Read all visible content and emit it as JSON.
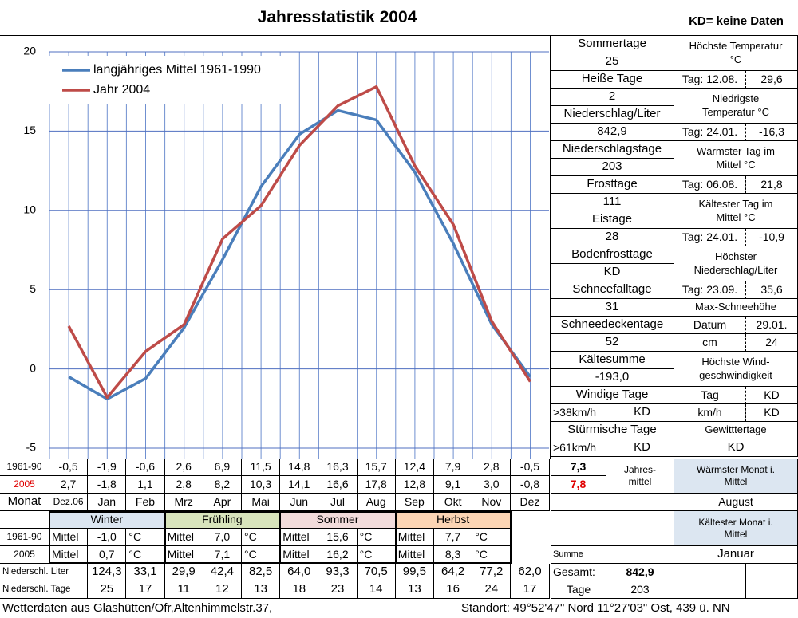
{
  "title": "Jahresstatistik 2004",
  "note": "KD= keine Daten",
  "chart_data": {
    "type": "line",
    "categories": [
      "Dez.06",
      "Jan",
      "Feb",
      "Mrz",
      "Apr",
      "Mai",
      "Jun",
      "Jul",
      "Aug",
      "Sep",
      "Okt",
      "Nov",
      "Dez"
    ],
    "series": [
      {
        "name": "langjähriges Mittel 1961-1990",
        "color": "#4a7ebb",
        "values": [
          -0.5,
          -1.9,
          -0.6,
          2.6,
          6.9,
          11.5,
          14.8,
          16.3,
          15.7,
          12.4,
          7.9,
          2.8,
          -0.5
        ],
        "value_labels": [
          "-0,5",
          "-1,9",
          "-0,6",
          "2,6",
          "6,9",
          "11,5",
          "14,8",
          "16,3",
          "15,7",
          "12,4",
          "7,9",
          "2,8",
          "-0,5"
        ]
      },
      {
        "name": "Jahr 2004",
        "color": "#be4b48",
        "values": [
          2.7,
          -1.8,
          1.1,
          2.8,
          8.2,
          10.3,
          14.1,
          16.6,
          17.8,
          12.8,
          9.1,
          3.0,
          -0.8
        ],
        "value_labels": [
          "2,7",
          "-1,8",
          "1,1",
          "2,8",
          "8,2",
          "10,3",
          "14,1",
          "16,6",
          "17,8",
          "12,8",
          "9,1",
          "3,0",
          "-0,8"
        ]
      }
    ],
    "ylim": [
      -5,
      20
    ],
    "yticks": [
      -5,
      0,
      5,
      10,
      15,
      20
    ],
    "grid": true,
    "legend": "upper left"
  },
  "monthly_table": {
    "row_labels": [
      "1961-90",
      "2005",
      "Monat"
    ],
    "annual_values": [
      "7,3",
      "7,8"
    ],
    "annual_label": "Jahres-\nmittel"
  },
  "warmest_month": {
    "label": "Wärmster Monat i.\nMittel",
    "value": "August"
  },
  "coldest_month": {
    "label": "Kältester Monat i.\nMittel",
    "value": "Januar"
  },
  "seasons": {
    "row_labels": [
      "1961-90",
      "2005"
    ],
    "mittel": "Mittel",
    "unit": "°C",
    "items": [
      {
        "name": "Winter",
        "color": "#dce6f1",
        "values": [
          "-1,0",
          "0,7"
        ]
      },
      {
        "name": "Frühling",
        "color": "#d8e4bc",
        "values": [
          "7,0",
          "7,1"
        ]
      },
      {
        "name": "Sommer",
        "color": "#f2dcdb",
        "values": [
          "15,6",
          "16,2"
        ]
      },
      {
        "name": "Herbst",
        "color": "#fcd5b4",
        "values": [
          "7,7",
          "8,3"
        ]
      }
    ]
  },
  "precipitation": {
    "rows": [
      {
        "label": "Niederschl. Liter",
        "values": [
          "124,3",
          "33,1",
          "29,9",
          "42,4",
          "82,5",
          "64,0",
          "93,3",
          "70,5",
          "99,5",
          "64,2",
          "77,2",
          "62,0"
        ]
      },
      {
        "label": "Niederschl. Tage",
        "values": [
          "25",
          "17",
          "11",
          "12",
          "13",
          "18",
          "23",
          "14",
          "13",
          "16",
          "24",
          "17"
        ]
      }
    ],
    "sum_label": "Summe",
    "total_label": "Gesamt:",
    "total": "842,9",
    "days_label": "Tage",
    "days": "203"
  },
  "stats_left": [
    "Sommertage",
    "25",
    "Heiße Tage",
    "2",
    "Niederschlag/Liter",
    "842,9",
    "Niederschlagstage",
    "203",
    "Frosttage",
    "111",
    "Eistage",
    "28",
    "Bodenfrosttage",
    "KD",
    "Schneefalltage",
    "31",
    "Schneedeckentage",
    "52",
    "Kältesumme",
    "-193,0",
    "Windige Tage",
    [
      ">38km/h",
      "KD"
    ],
    "Stürmische Tage",
    [
      ">61km/h",
      "KD"
    ]
  ],
  "stats_right": [
    "Höchste Temperatur\n°C",
    [
      "Tag: 12.08.",
      "29,6"
    ],
    "Niedrigste\nTemperatur °C",
    [
      "Tag: 24.01.",
      "-16,3"
    ],
    "Wärmster Tag im\nMittel °C",
    [
      "Tag: 06.08.",
      "21,8"
    ],
    "Kältester Tag im\nMittel °C",
    [
      "Tag: 24.01.",
      "-10,9"
    ],
    "Höchster\nNiederschlag/Liter",
    [
      "Tag: 23.09.",
      "35,6"
    ],
    "Max-Schneehöhe",
    [
      "Datum",
      "29.01."
    ],
    [
      "cm",
      "24"
    ],
    "Höchste Wind-\ngeschwindigkeit",
    [
      "Tag",
      "KD"
    ],
    [
      "km/h",
      "KD"
    ],
    "Gewitttertage",
    "KD"
  ],
  "footer": {
    "left": "Wetterdaten aus Glashütten/Ofr,Altenhimmelstr.37,",
    "right": "Standort:  49°52'47\" Nord   11°27'03\" Ost, 439 ü. NN"
  }
}
